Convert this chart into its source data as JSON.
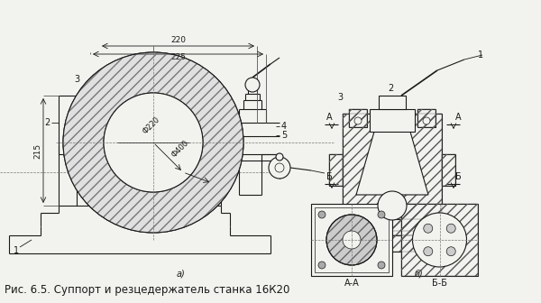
{
  "caption": "Рис. 6.5. Суппорт и резцедержатель станка 16К20",
  "bg_color": "#f2f2ee",
  "line_color": "#1a1a1a",
  "fig_width": 6.0,
  "fig_height": 3.36,
  "dpi": 100,
  "caption_fontsize": 8.5,
  "label_fontsize": 7,
  "dim_fontsize": 6.5,
  "label_a": "а)",
  "label_b": "б)",
  "dim_220": "220",
  "dim_225": "225",
  "dim_phi220": "Ф220",
  "dim_phi400": "Ф400",
  "dim_215": "215",
  "section_aa": "А-А",
  "section_bb": "Б-Б",
  "cut_A": "А",
  "cut_B": "Б"
}
